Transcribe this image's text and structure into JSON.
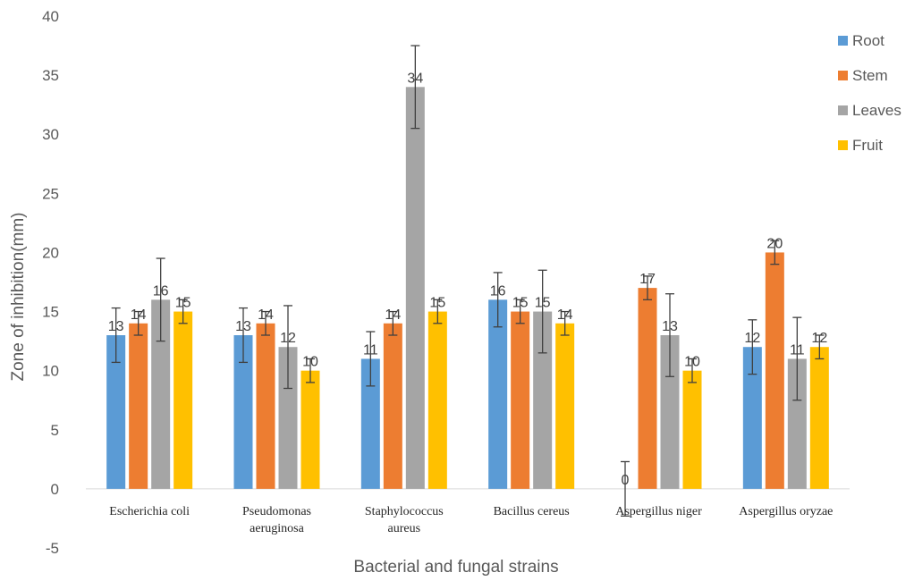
{
  "chart_data": {
    "type": "bar",
    "title": "",
    "xlabel": "Bacterial and fungal strains",
    "ylabel": "Zone of inhibition(mm)",
    "ylim": [
      -5,
      40
    ],
    "yticks": [
      -5,
      0,
      5,
      10,
      15,
      20,
      25,
      30,
      35,
      40
    ],
    "grid": false,
    "legend_position": "right",
    "categories": [
      [
        "Escherichia coli"
      ],
      [
        "Pseudomonas",
        "aeruginosa"
      ],
      [
        "Staphylococcus",
        "aureus"
      ],
      [
        "Bacillus cereus"
      ],
      [
        "Aspergillus niger"
      ],
      [
        "Aspergillus oryzae"
      ]
    ],
    "series": [
      {
        "name": "Root",
        "color": "#5B9BD5",
        "values": [
          13,
          13,
          11,
          16,
          0,
          12
        ],
        "errors": [
          2.3,
          2.3,
          2.3,
          2.3,
          2.3,
          2.3
        ]
      },
      {
        "name": "Stem",
        "color": "#ED7D31",
        "values": [
          14,
          14,
          14,
          15,
          17,
          20
        ],
        "errors": [
          1,
          1,
          1,
          1,
          1,
          1
        ]
      },
      {
        "name": "Leaves",
        "color": "#A5A5A5",
        "values": [
          16,
          12,
          34,
          15,
          13,
          11
        ],
        "errors": [
          3.5,
          3.5,
          3.5,
          3.5,
          3.5,
          3.5
        ]
      },
      {
        "name": "Fruit",
        "color": "#FFC000",
        "values": [
          15,
          10,
          15,
          14,
          10,
          12
        ],
        "errors": [
          1,
          1,
          1,
          1,
          1,
          1
        ]
      }
    ]
  }
}
